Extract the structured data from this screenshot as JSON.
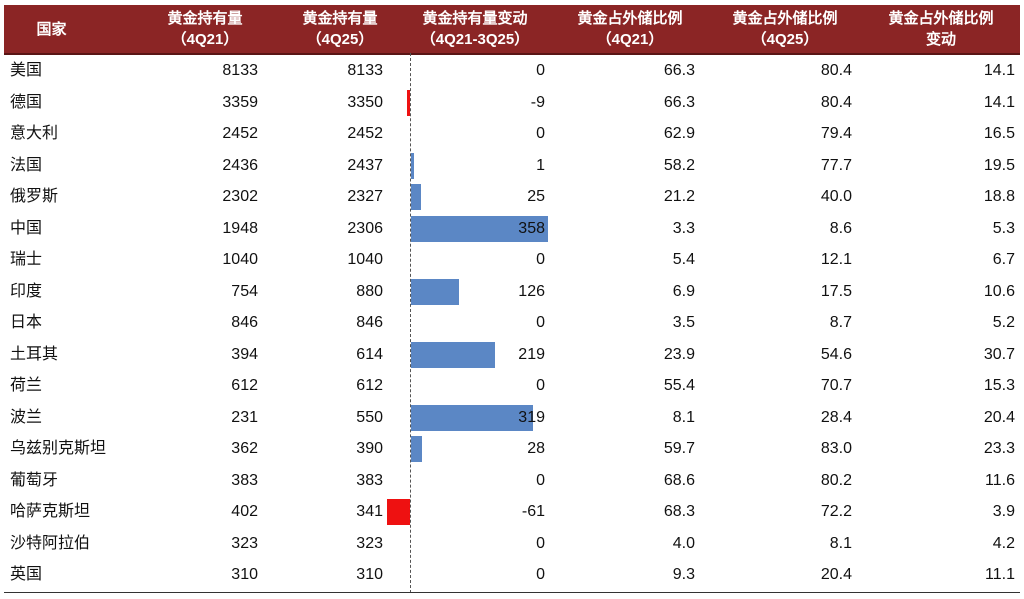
{
  "chart_data": {
    "type": "table",
    "columns": [
      "国家",
      "黄金持有量（4Q21）",
      "黄金持有量（4Q25）",
      "黄金持有量变动（4Q21-3Q25）",
      "黄金占外储比例（4Q21）",
      "黄金占外储比例（4Q25）",
      "黄金占外储比例变动"
    ],
    "header": [
      [
        "国家"
      ],
      [
        "黄金持有量",
        "（4Q21）"
      ],
      [
        "黄金持有量",
        "（4Q25）"
      ],
      [
        "黄金持有量变动",
        "（4Q21-3Q25）"
      ],
      [
        "黄金占外储比例",
        "（4Q21）"
      ],
      [
        "黄金占外储比例",
        "（4Q25）"
      ],
      [
        "黄金占外储比例",
        "变动"
      ]
    ],
    "rows": [
      [
        "美国",
        "8133",
        "8133",
        "0",
        "66.3",
        "80.4",
        "14.1"
      ],
      [
        "德国",
        "3359",
        "3350",
        "-9",
        "66.3",
        "80.4",
        "14.1"
      ],
      [
        "意大利",
        "2452",
        "2452",
        "0",
        "62.9",
        "79.4",
        "16.5"
      ],
      [
        "法国",
        "2436",
        "2437",
        "1",
        "58.2",
        "77.7",
        "19.5"
      ],
      [
        "俄罗斯",
        "2302",
        "2327",
        "25",
        "21.2",
        "40.0",
        "18.8"
      ],
      [
        "中国",
        "1948",
        "2306",
        "358",
        "3.3",
        "8.6",
        "5.3"
      ],
      [
        "瑞士",
        "1040",
        "1040",
        "0",
        "5.4",
        "12.1",
        "6.7"
      ],
      [
        "印度",
        "754",
        "880",
        "126",
        "6.9",
        "17.5",
        "10.6"
      ],
      [
        "日本",
        "846",
        "846",
        "0",
        "3.5",
        "8.7",
        "5.2"
      ],
      [
        "土耳其",
        "394",
        "614",
        "219",
        "23.9",
        "54.6",
        "30.7"
      ],
      [
        "荷兰",
        "612",
        "612",
        "0",
        "55.4",
        "70.7",
        "15.3"
      ],
      [
        "波兰",
        "231",
        "550",
        "319",
        "8.1",
        "28.4",
        "20.4"
      ],
      [
        "乌兹别克斯坦",
        "362",
        "390",
        "28",
        "59.7",
        "83.0",
        "23.3"
      ],
      [
        "葡萄牙",
        "383",
        "383",
        "0",
        "68.6",
        "80.2",
        "11.6"
      ],
      [
        "哈萨克斯坦",
        "402",
        "341",
        "-61",
        "68.3",
        "72.2",
        "3.9"
      ],
      [
        "沙特阿拉伯",
        "323",
        "323",
        "0",
        "4.0",
        "8.1",
        "4.2"
      ],
      [
        "英国",
        "310",
        "310",
        "0",
        "9.3",
        "20.4",
        "11.1"
      ]
    ],
    "bar_column": 3,
    "bar_max": 358
  },
  "colors": {
    "header": "#8b2525",
    "positive_bar": "#5b87c5",
    "negative_bar": "#ee1111"
  }
}
